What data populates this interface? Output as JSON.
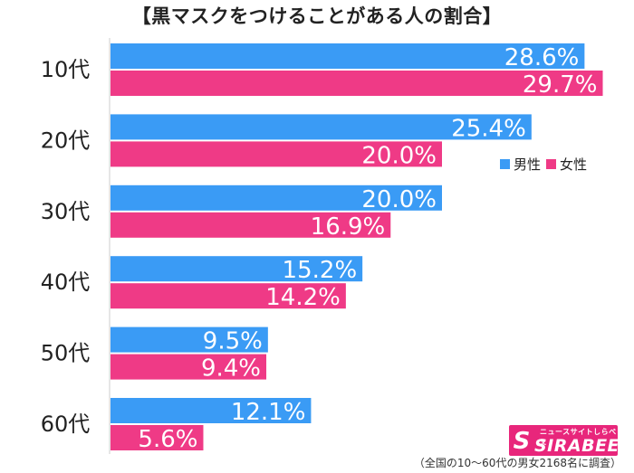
{
  "title": "【黒マスクをつけることがある人の割合】",
  "chart_data": {
    "type": "bar",
    "orientation": "horizontal",
    "title": "【黒マスクをつけることがある人の割合】",
    "categories": [
      "10代",
      "20代",
      "30代",
      "40代",
      "50代",
      "60代"
    ],
    "series": [
      {
        "name": "男性",
        "color": "#3a9bf5",
        "values": [
          28.6,
          25.4,
          20.0,
          15.2,
          9.5,
          12.1
        ],
        "labels": [
          "28.6%",
          "25.4%",
          "20.0%",
          "15.2%",
          "9.5%",
          "12.1%"
        ]
      },
      {
        "name": "女性",
        "color": "#ef3a86",
        "values": [
          29.7,
          20.0,
          16.9,
          14.2,
          9.4,
          5.6
        ],
        "labels": [
          "29.7%",
          "20.0%",
          "16.9%",
          "14.2%",
          "9.4%",
          "5.6%"
        ]
      }
    ],
    "xlim": [
      0,
      30
    ],
    "grid": false,
    "legend_position": "right"
  },
  "legend": {
    "male": "男性",
    "female": "女性"
  },
  "brand": {
    "name": "SIRABEE",
    "sub": "ニュースサイトしらべぇ",
    "logo": "S"
  },
  "footnote": "（全国の10〜60代の男女2168名に調査）",
  "colors": {
    "male": "#3a9bf5",
    "female": "#ef3a86",
    "brand": "#e8267b"
  }
}
